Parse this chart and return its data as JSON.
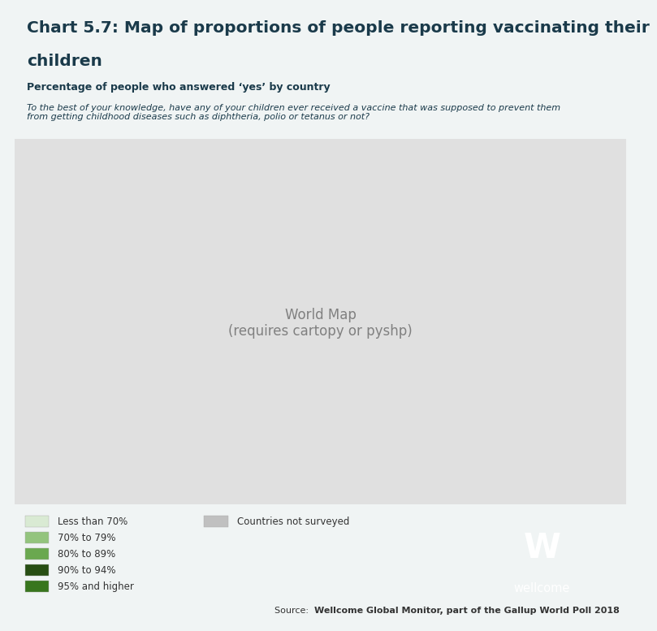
{
  "title_line1": "Chart 5.7: Map of proportions of people reporting vaccinating their",
  "title_line2": "children",
  "subtitle": "Percentage of people who answered ‘yes’ by country",
  "question": "To the best of your knowledge, have any of your children ever received a vaccine that was supposed to prevent them\nfrom getting childhood diseases such as diphtheria, polio or tetanus or not?",
  "source_normal": "Source: ",
  "source_bold": "Wellcome Global Monitor, part of the Gallup World Poll 2018",
  "background_color": "#f0f4f4",
  "header_bar_color": "#1a3a4a",
  "title_color": "#1a3a4a",
  "legend_colors": {
    "Less than 70%": "#d9ead3",
    "70% to 79%": "#93c47d",
    "80% to 89%": "#6aa84f",
    "90% to 94%": "#274e13",
    "95% and higher": "#38761d",
    "Countries not surveyed": "#c0c0c0"
  },
  "colors_by_category": {
    "-1": "#c0c0c0",
    "1": "#d9ead3",
    "2": "#93c47d",
    "3": "#6aa84f",
    "4": "#274e13",
    "5": "#38761d"
  },
  "map_ocean_color": "#ffffff",
  "map_border_color": "#ffffff",
  "wellcome_bg_color": "#1a3a4a",
  "wellcome_text_color": "#ffffff"
}
